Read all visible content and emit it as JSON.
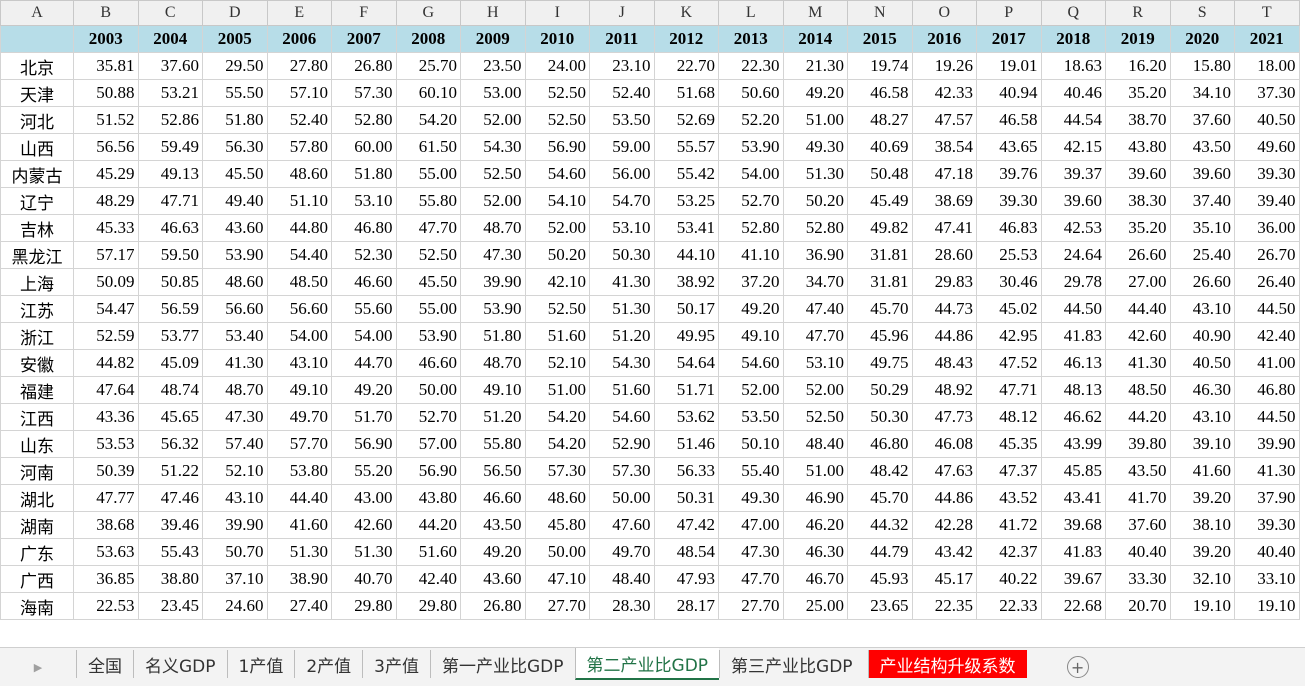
{
  "columns": [
    "A",
    "B",
    "C",
    "D",
    "E",
    "F",
    "G",
    "H",
    "I",
    "J",
    "K",
    "L",
    "M",
    "N",
    "O",
    "P",
    "Q",
    "R",
    "S",
    "T"
  ],
  "table": {
    "header": [
      "2003",
      "2004",
      "2005",
      "2006",
      "2007",
      "2008",
      "2009",
      "2010",
      "2011",
      "2012",
      "2013",
      "2014",
      "2015",
      "2016",
      "2017",
      "2018",
      "2019",
      "2020",
      "2021"
    ],
    "rows": [
      [
        "北京",
        "35.81",
        "37.60",
        "29.50",
        "27.80",
        "26.80",
        "25.70",
        "23.50",
        "24.00",
        "23.10",
        "22.70",
        "22.30",
        "21.30",
        "19.74",
        "19.26",
        "19.01",
        "18.63",
        "16.20",
        "15.80",
        "18.00"
      ],
      [
        "天津",
        "50.88",
        "53.21",
        "55.50",
        "57.10",
        "57.30",
        "60.10",
        "53.00",
        "52.50",
        "52.40",
        "51.68",
        "50.60",
        "49.20",
        "46.58",
        "42.33",
        "40.94",
        "40.46",
        "35.20",
        "34.10",
        "37.30"
      ],
      [
        "河北",
        "51.52",
        "52.86",
        "51.80",
        "52.40",
        "52.80",
        "54.20",
        "52.00",
        "52.50",
        "53.50",
        "52.69",
        "52.20",
        "51.00",
        "48.27",
        "47.57",
        "46.58",
        "44.54",
        "38.70",
        "37.60",
        "40.50"
      ],
      [
        "山西",
        "56.56",
        "59.49",
        "56.30",
        "57.80",
        "60.00",
        "61.50",
        "54.30",
        "56.90",
        "59.00",
        "55.57",
        "53.90",
        "49.30",
        "40.69",
        "38.54",
        "43.65",
        "42.15",
        "43.80",
        "43.50",
        "49.60"
      ],
      [
        "内蒙古",
        "45.29",
        "49.13",
        "45.50",
        "48.60",
        "51.80",
        "55.00",
        "52.50",
        "54.60",
        "56.00",
        "55.42",
        "54.00",
        "51.30",
        "50.48",
        "47.18",
        "39.76",
        "39.37",
        "39.60",
        "39.60",
        "39.30"
      ],
      [
        "辽宁",
        "48.29",
        "47.71",
        "49.40",
        "51.10",
        "53.10",
        "55.80",
        "52.00",
        "54.10",
        "54.70",
        "53.25",
        "52.70",
        "50.20",
        "45.49",
        "38.69",
        "39.30",
        "39.60",
        "38.30",
        "37.40",
        "39.40"
      ],
      [
        "吉林",
        "45.33",
        "46.63",
        "43.60",
        "44.80",
        "46.80",
        "47.70",
        "48.70",
        "52.00",
        "53.10",
        "53.41",
        "52.80",
        "52.80",
        "49.82",
        "47.41",
        "46.83",
        "42.53",
        "35.20",
        "35.10",
        "36.00"
      ],
      [
        "黑龙江",
        "57.17",
        "59.50",
        "53.90",
        "54.40",
        "52.30",
        "52.50",
        "47.30",
        "50.20",
        "50.30",
        "44.10",
        "41.10",
        "36.90",
        "31.81",
        "28.60",
        "25.53",
        "24.64",
        "26.60",
        "25.40",
        "26.70"
      ],
      [
        "上海",
        "50.09",
        "50.85",
        "48.60",
        "48.50",
        "46.60",
        "45.50",
        "39.90",
        "42.10",
        "41.30",
        "38.92",
        "37.20",
        "34.70",
        "31.81",
        "29.83",
        "30.46",
        "29.78",
        "27.00",
        "26.60",
        "26.40"
      ],
      [
        "江苏",
        "54.47",
        "56.59",
        "56.60",
        "56.60",
        "55.60",
        "55.00",
        "53.90",
        "52.50",
        "51.30",
        "50.17",
        "49.20",
        "47.40",
        "45.70",
        "44.73",
        "45.02",
        "44.50",
        "44.40",
        "43.10",
        "44.50"
      ],
      [
        "浙江",
        "52.59",
        "53.77",
        "53.40",
        "54.00",
        "54.00",
        "53.90",
        "51.80",
        "51.60",
        "51.20",
        "49.95",
        "49.10",
        "47.70",
        "45.96",
        "44.86",
        "42.95",
        "41.83",
        "42.60",
        "40.90",
        "42.40"
      ],
      [
        "安徽",
        "44.82",
        "45.09",
        "41.30",
        "43.10",
        "44.70",
        "46.60",
        "48.70",
        "52.10",
        "54.30",
        "54.64",
        "54.60",
        "53.10",
        "49.75",
        "48.43",
        "47.52",
        "46.13",
        "41.30",
        "40.50",
        "41.00"
      ],
      [
        "福建",
        "47.64",
        "48.74",
        "48.70",
        "49.10",
        "49.20",
        "50.00",
        "49.10",
        "51.00",
        "51.60",
        "51.71",
        "52.00",
        "52.00",
        "50.29",
        "48.92",
        "47.71",
        "48.13",
        "48.50",
        "46.30",
        "46.80"
      ],
      [
        "江西",
        "43.36",
        "45.65",
        "47.30",
        "49.70",
        "51.70",
        "52.70",
        "51.20",
        "54.20",
        "54.60",
        "53.62",
        "53.50",
        "52.50",
        "50.30",
        "47.73",
        "48.12",
        "46.62",
        "44.20",
        "43.10",
        "44.50"
      ],
      [
        "山东",
        "53.53",
        "56.32",
        "57.40",
        "57.70",
        "56.90",
        "57.00",
        "55.80",
        "54.20",
        "52.90",
        "51.46",
        "50.10",
        "48.40",
        "46.80",
        "46.08",
        "45.35",
        "43.99",
        "39.80",
        "39.10",
        "39.90"
      ],
      [
        "河南",
        "50.39",
        "51.22",
        "52.10",
        "53.80",
        "55.20",
        "56.90",
        "56.50",
        "57.30",
        "57.30",
        "56.33",
        "55.40",
        "51.00",
        "48.42",
        "47.63",
        "47.37",
        "45.85",
        "43.50",
        "41.60",
        "41.30"
      ],
      [
        "湖北",
        "47.77",
        "47.46",
        "43.10",
        "44.40",
        "43.00",
        "43.80",
        "46.60",
        "48.60",
        "50.00",
        "50.31",
        "49.30",
        "46.90",
        "45.70",
        "44.86",
        "43.52",
        "43.41",
        "41.70",
        "39.20",
        "37.90"
      ],
      [
        "湖南",
        "38.68",
        "39.46",
        "39.90",
        "41.60",
        "42.60",
        "44.20",
        "43.50",
        "45.80",
        "47.60",
        "47.42",
        "47.00",
        "46.20",
        "44.32",
        "42.28",
        "41.72",
        "39.68",
        "37.60",
        "38.10",
        "39.30"
      ],
      [
        "广东",
        "53.63",
        "55.43",
        "50.70",
        "51.30",
        "51.30",
        "51.60",
        "49.20",
        "50.00",
        "49.70",
        "48.54",
        "47.30",
        "46.30",
        "44.79",
        "43.42",
        "42.37",
        "41.83",
        "40.40",
        "39.20",
        "40.40"
      ],
      [
        "广西",
        "36.85",
        "38.80",
        "37.10",
        "38.90",
        "40.70",
        "42.40",
        "43.60",
        "47.10",
        "48.40",
        "47.93",
        "47.70",
        "46.70",
        "45.93",
        "45.17",
        "40.22",
        "39.67",
        "33.30",
        "32.10",
        "33.10"
      ],
      [
        "海南",
        "22.53",
        "23.45",
        "24.60",
        "27.40",
        "29.80",
        "29.80",
        "26.80",
        "27.70",
        "28.30",
        "28.17",
        "27.70",
        "25.00",
        "23.65",
        "22.35",
        "22.33",
        "22.68",
        "20.70",
        "19.10",
        "19.10"
      ]
    ]
  },
  "tabs": [
    "全国",
    "名义GDP",
    "1产值",
    "2产值",
    "3产值",
    "第一产业比GDP",
    "第二产业比GDP",
    "第三产业比GDP",
    "产业结构升级系数"
  ]
}
